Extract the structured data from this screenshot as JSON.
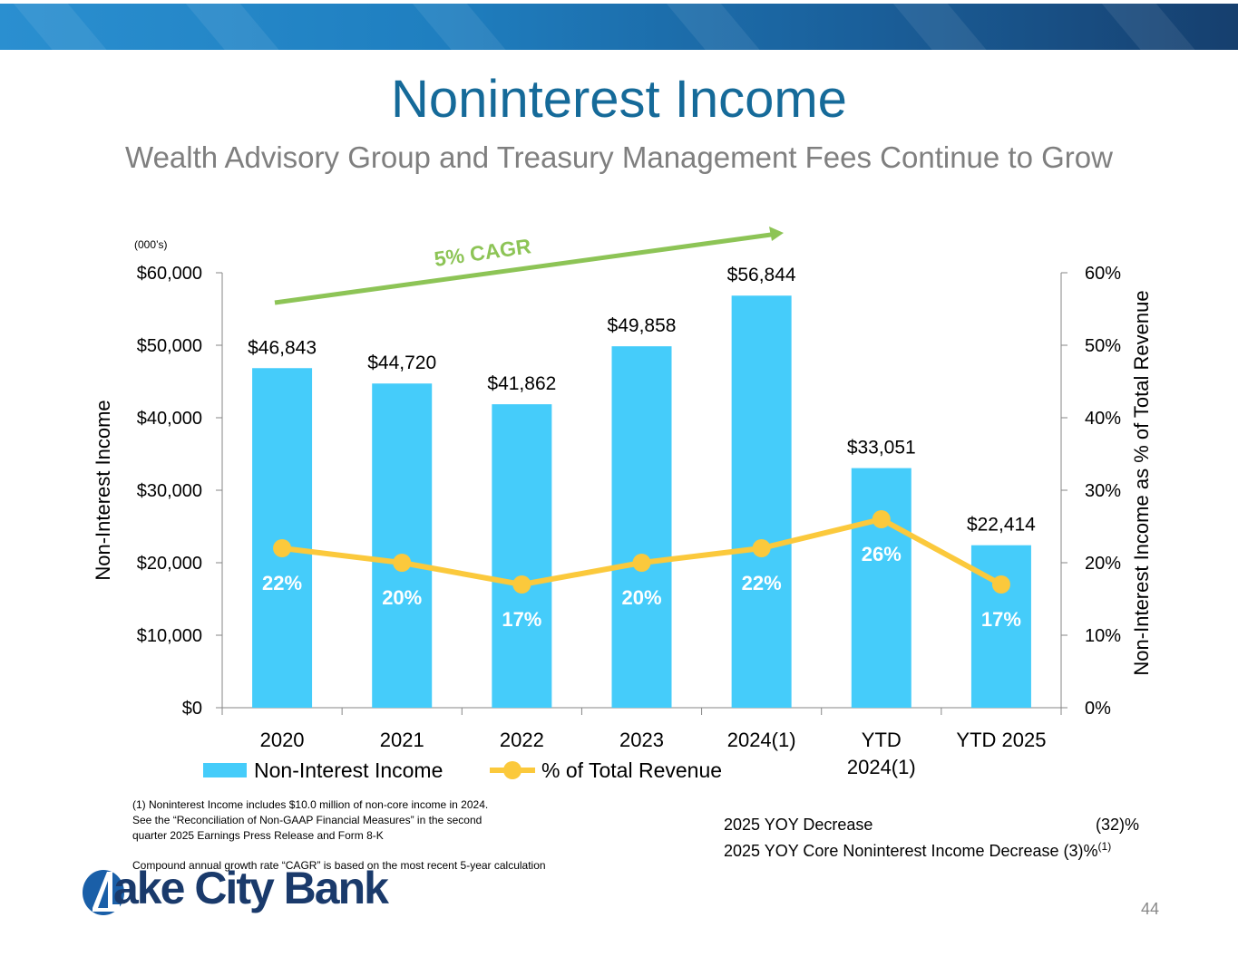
{
  "header": {
    "title": "Noninterest Income",
    "subtitle": "Wealth Advisory Group and Treasury Management Fees Continue to Grow"
  },
  "units_note": "(000’s)",
  "cagr_label": "5% CAGR",
  "chart_data": {
    "type": "bar",
    "categories": [
      [
        "2020"
      ],
      [
        "2021"
      ],
      [
        "2022"
      ],
      [
        "2023"
      ],
      [
        "2024(1)"
      ],
      [
        "YTD",
        "2024(1)"
      ],
      [
        "YTD 2025"
      ]
    ],
    "series": [
      {
        "name": "Non-Interest Income",
        "type": "bar",
        "axis": "left",
        "color": "#45ccfa",
        "values": [
          46843,
          44720,
          41862,
          49858,
          56844,
          33051,
          22414
        ],
        "labels": [
          "$46,843",
          "$44,720",
          "$41,862",
          "$49,858",
          "$56,844",
          "$33,051",
          "$22,414"
        ]
      },
      {
        "name": "% of Total Revenue",
        "type": "line",
        "axis": "right",
        "color": "#fbc93c",
        "values": [
          22,
          20,
          17,
          20,
          22,
          26,
          17
        ],
        "labels": [
          "22%",
          "20%",
          "17%",
          "20%",
          "22%",
          "26%",
          "17%"
        ]
      }
    ],
    "ylabel": "Non-Interest Income",
    "y2label": "Non-Interest Income as % of Total Revenue",
    "ylim": [
      0,
      60000
    ],
    "y2lim": [
      0,
      60
    ],
    "yticks": [
      "$0",
      "$10,000",
      "$20,000",
      "$30,000",
      "$40,000",
      "$50,000",
      "$60,000"
    ],
    "y2ticks": [
      "0%",
      "10%",
      "20%",
      "30%",
      "40%",
      "50%",
      "60%"
    ],
    "legend": [
      "Non-Interest Income",
      "% of Total Revenue"
    ],
    "trend_color": "#8dc456"
  },
  "footnotes": {
    "note1": [
      "(1) Noninterest Income includes $10.0 million of non-core income in 2024.",
      "See the “Reconciliation of Non-GAAP Financial Measures” in the second",
      "quarter 2025 Earnings Press Release and Form 8-K"
    ],
    "cagr_note": "Compound annual growth rate “CAGR” is based on the most recent 5-year calculation"
  },
  "yoy": {
    "line1_label": "2025 YOY Decrease",
    "line1_value": "(32)%",
    "line2_label": "2025 YOY Core Noninterest Income Decrease (3)%",
    "line2_sup": "(1)"
  },
  "logo_text": "ake City Bank",
  "page_number": "44"
}
